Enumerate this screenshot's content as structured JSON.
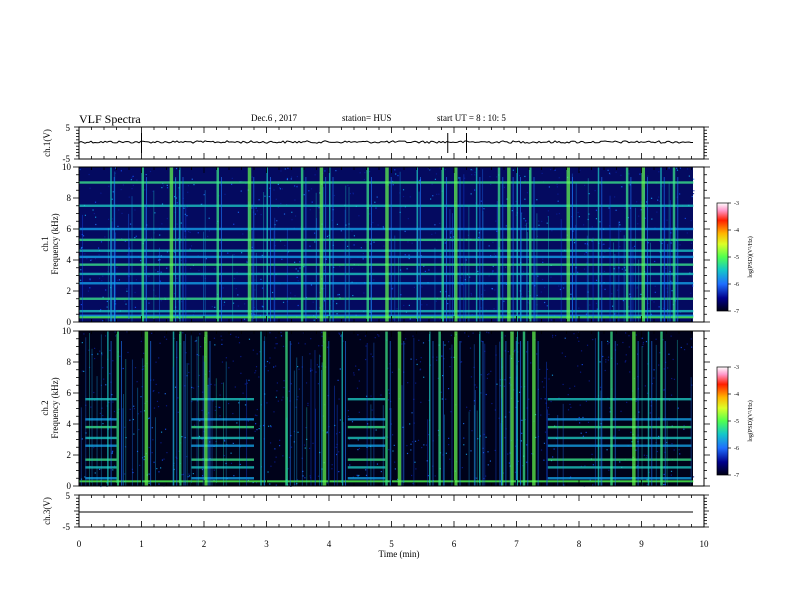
{
  "header": {
    "title": "VLF Spectra",
    "date": "Dec.6 , 2017",
    "station": "station= HUS",
    "start": "start UT = 8 : 10: 5"
  },
  "colors": {
    "background": "#ffffff",
    "spectrogram_colormap": [
      "#000028",
      "#00006e",
      "#0a1ed2",
      "#1e64ff",
      "#14b4dc",
      "#28e6b4",
      "#50ff50",
      "#c8ff28",
      "#ffd200",
      "#ff6400",
      "#ff0000",
      "#ff96c8",
      "#ffffff"
    ]
  },
  "chart_data": [
    {
      "type": "line",
      "ylabel": "ch.1(V)",
      "ylim": [
        -5,
        5
      ],
      "yticks": [
        "5",
        "-5"
      ],
      "x": [
        0,
        10
      ],
      "series": [
        {
          "values": [
            0,
            0
          ]
        }
      ],
      "note_spikes_min": [
        1.0,
        5.9,
        6.2
      ]
    },
    {
      "type": "heatmap",
      "ylabel": "ch.1",
      "ylabel2": "Frequency (kHz)",
      "ylim": [
        0,
        10
      ],
      "yticks": [
        "0",
        "2",
        "4",
        "6",
        "8",
        "10"
      ],
      "xlim": [
        0,
        10
      ],
      "colorbar": {
        "label": "log(PSD)(V²/Hz)",
        "range": [
          -7,
          -3
        ],
        "ticks": [
          "-3",
          "-4",
          "-5",
          "-6",
          "-7"
        ]
      },
      "data_extent_min": [
        0,
        9.83
      ],
      "horizontal_bands_khz": [
        0.4,
        0.7,
        1.5,
        2.5,
        3.1,
        3.7,
        4.2,
        4.6,
        5.3,
        6.0,
        7.5,
        9.0
      ],
      "vertical_bursts_min": [
        0.5,
        1.0,
        1.45,
        1.6,
        2.2,
        2.7,
        3.0,
        3.55,
        3.85,
        4.0,
        4.6,
        4.9,
        5.4,
        5.8,
        6.0,
        6.35,
        6.7,
        6.85,
        7.0,
        7.2,
        7.8,
        8.3,
        8.75,
        9.0,
        9.3,
        9.5
      ]
    },
    {
      "type": "heatmap",
      "ylabel": "ch.2",
      "ylabel2": "Frequency (kHz)",
      "ylim": [
        0,
        10
      ],
      "yticks": [
        "0",
        "2",
        "4",
        "6",
        "8",
        "10"
      ],
      "xlim": [
        0,
        10
      ],
      "colorbar": {
        "label": "log(PSD)(V²/Hz)",
        "range": [
          -7,
          -3
        ],
        "ticks": [
          "-3",
          "-4",
          "-5",
          "-6",
          "-7"
        ]
      },
      "data_extent_min": [
        0,
        9.83
      ],
      "horizontal_bands_khz": [
        0.5,
        1.2,
        1.7,
        2.6,
        3.1,
        3.8,
        4.3,
        5.6
      ],
      "vertical_bursts_min": [
        0.45,
        0.6,
        1.05,
        1.5,
        1.6,
        2.0,
        2.9,
        3.3,
        3.9,
        4.2,
        4.9,
        5.1,
        5.6,
        5.75,
        6.0,
        6.4,
        6.75,
        6.9,
        7.0,
        7.1,
        7.25,
        8.3,
        8.5,
        8.85,
        9.1,
        9.3
      ]
    },
    {
      "type": "line",
      "ylabel": "ch.3(V)",
      "ylim": [
        -5,
        5
      ],
      "yticks": [
        "5",
        "-5"
      ],
      "x": [
        0,
        10
      ],
      "xticks": [
        "0",
        "1",
        "2",
        "3",
        "4",
        "5",
        "6",
        "7",
        "8",
        "9",
        "10"
      ],
      "xlabel": "Time (min)",
      "series": [
        {
          "values": [
            0,
            0
          ]
        }
      ]
    }
  ]
}
